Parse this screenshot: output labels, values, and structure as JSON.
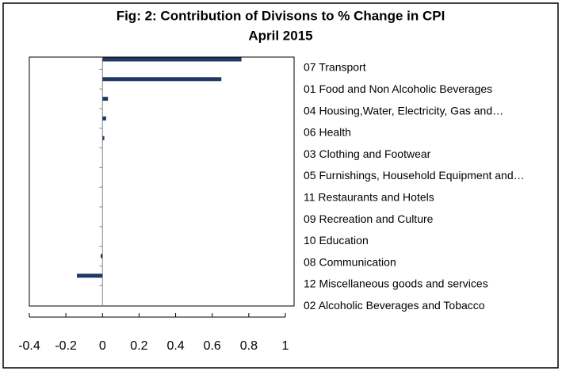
{
  "chart_data": {
    "type": "hbar",
    "title": "Fig: 2: Contribution of Divisons to % Change in CPI",
    "subtitle": "April 2015",
    "categories": [
      "07 Transport",
      "01 Food and Non Alcoholic Beverages",
      "04 Housing,Water, Electricity, Gas and…",
      "06 Health",
      "03 Clothing and Footwear",
      "05 Furnishings, Household Equipment and…",
      "11 Restaurants and Hotels",
      "09 Recreation and Culture",
      "10 Education",
      "08 Communication",
      "12 Miscellaneous goods and services",
      "02 Alcoholic Beverages and Tobacco"
    ],
    "values": [
      0.76,
      0.65,
      0.03,
      0.02,
      0.01,
      0,
      0,
      0,
      0,
      0,
      -0.01,
      -0.14
    ],
    "color": "#1f3864",
    "xlim": [
      -0.4,
      1
    ],
    "xticks": [
      -0.4,
      -0.2,
      0,
      0.2,
      0.4,
      0.6,
      0.8,
      1
    ]
  }
}
